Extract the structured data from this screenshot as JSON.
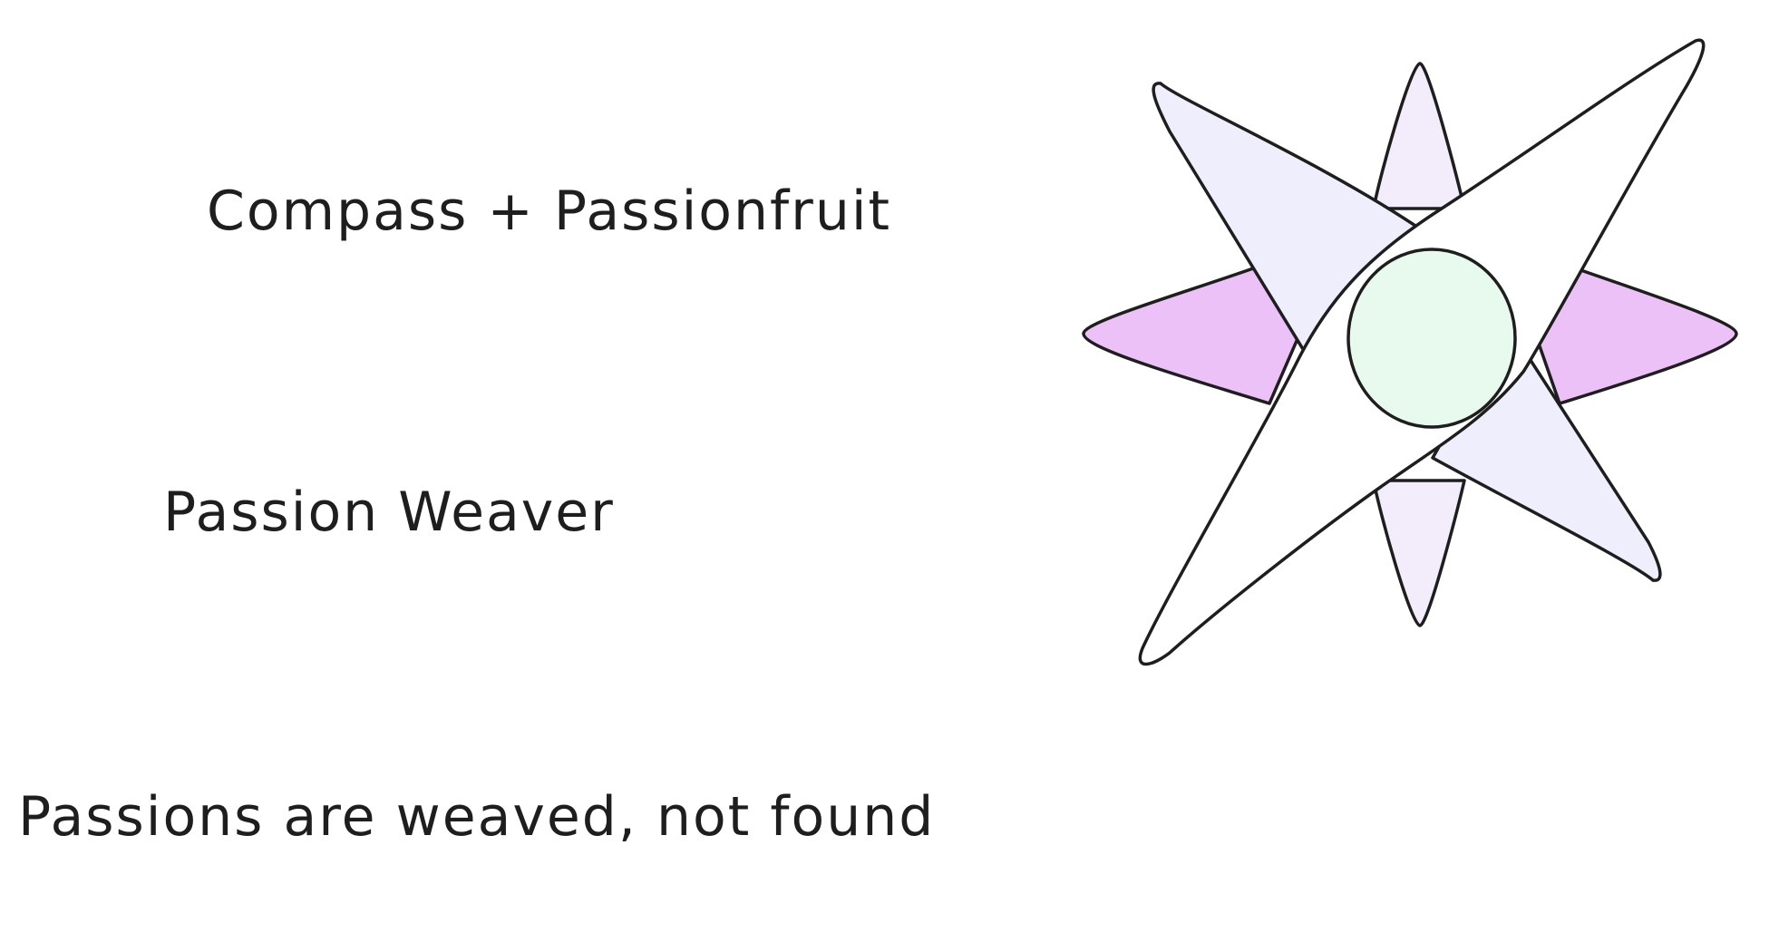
{
  "texts": {
    "line1": "Compass + Passionfruit",
    "line2": "Passion Weaver",
    "line3": "Passions are weaved, not found"
  },
  "icon": {
    "name": "compass-star-icon",
    "colors": {
      "stroke": "#1e1e1e",
      "vertical_points": "#f3ecfb",
      "horizontal_points": "#ebc1f7",
      "diagonal_points": "#efeefd",
      "long_diagonal_points": "#ffffff",
      "center": "#e8f9ee"
    }
  }
}
